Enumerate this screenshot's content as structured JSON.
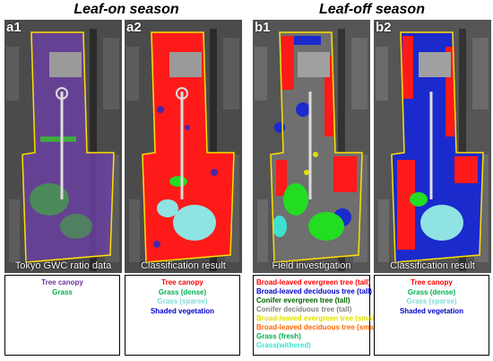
{
  "titles": {
    "leaf_on": "Leaf-on season",
    "leaf_off": "Leaf-off season"
  },
  "panels": {
    "a1": {
      "label": "a1",
      "caption": "Tokyo GWC ratio data"
    },
    "a2": {
      "label": "a2",
      "caption": "Classification result"
    },
    "b1": {
      "label": "b1",
      "caption": "Field investigation"
    },
    "b2": {
      "label": "b2",
      "caption": "Classification result"
    }
  },
  "legends": {
    "a1": [
      {
        "text": "Tree canopy",
        "color": "#7030a0"
      },
      {
        "text": "Grass",
        "color": "#00b050"
      }
    ],
    "a2": [
      {
        "text": "Tree canopy",
        "color": "#ff0000"
      },
      {
        "text": "Grass (dense)",
        "color": "#00b050"
      },
      {
        "text": "Grass (sparse)",
        "color": "#7fd8d8"
      },
      {
        "text": "Shaded vegetation",
        "color": "#0000cc"
      }
    ],
    "b1": [
      {
        "text": "Broad-leaved evergreen tree (tall)",
        "color": "#ff0000"
      },
      {
        "text": "Broad-leaved deciduous tree (tall)",
        "color": "#0000cc"
      },
      {
        "text": "Conifer evergreen tree (tall)",
        "color": "#006400"
      },
      {
        "text": "Conifer deciduous tree (tall)",
        "color": "#7f7f7f"
      },
      {
        "text": "Broad-leaved evergreen tree (small)",
        "color": "#e0e000"
      },
      {
        "text": "Broad-leaved deciduous tree (small)",
        "color": "#ff6600"
      },
      {
        "text": "Grass (fresh)",
        "color": "#00b050"
      },
      {
        "text": "Grass(withered)",
        "color": "#40e0d0"
      }
    ],
    "b2": [
      {
        "text": "Tree canopy",
        "color": "#ff0000"
      },
      {
        "text": "Grass (dense)",
        "color": "#00b050"
      },
      {
        "text": "Grass (sparse)",
        "color": "#7fd8d8"
      },
      {
        "text": "Shaded vegetation",
        "color": "#0000cc"
      }
    ]
  },
  "map_colors": {
    "urban": "#4a4a4a",
    "boundary": "#ffe000",
    "a1_canopy": "#6a3fa0",
    "a1_grass": "#3faa3f",
    "canopy_red": "#ff1a1a",
    "shade_blue": "#1a2acc",
    "sparse_cyan": "#8fe3e3",
    "grass_green": "#22dd22"
  }
}
